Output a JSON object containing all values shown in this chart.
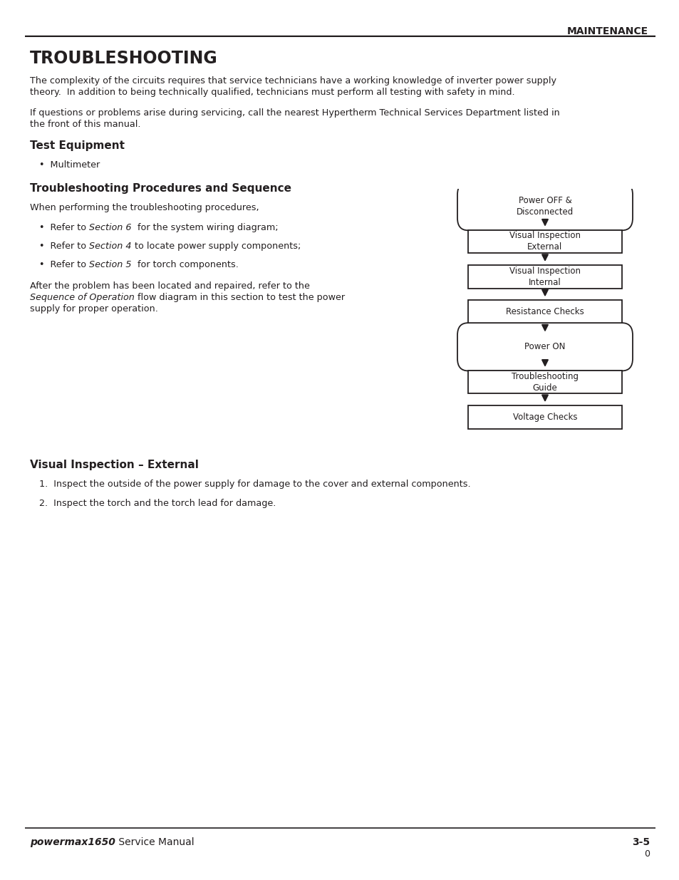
{
  "page_title": "MAINTENANCE",
  "section_title": "TROUBLESHOOTING",
  "body_text_1a": "The complexity of the circuits requires that service technicians have a working knowledge of inverter power supply",
  "body_text_1b": "theory.  In addition to being technically qualified, technicians must perform all testing with safety in mind.",
  "body_text_2a": "If questions or problems arise during servicing, call the nearest Hypertherm Technical Services Department listed in",
  "body_text_2b": "the front of this manual.",
  "subsection1_title": "Test Equipment",
  "bullet1": "•  Multimeter",
  "subsection2_title": "Troubleshooting Procedures and Sequence",
  "proc_intro": "When performing the troubleshooting procedures,",
  "b2_pre": "•  Refer to ",
  "b2_italic": "Section 6",
  "b2_post": "  for the system wiring diagram;",
  "b3_pre": "•  Refer to ",
  "b3_italic": "Section 4",
  "b3_post": " to locate power supply components;",
  "b4_pre": "•  Refer to ",
  "b4_italic": "Section 5",
  "b4_post": "  for torch components.",
  "after1": "After the problem has been located and repaired, refer to the",
  "after2_italic": "Sequence of Operation",
  "after2_post": " flow diagram in this section to test the power",
  "after3": "supply for proper operation.",
  "subsection3_title": "Visual Inspection – External",
  "numbered1": "1.  Inspect the outside of the power supply for damage to the cover and external components.",
  "numbered2": "2.  Inspect the torch and the torch lead for damage.",
  "footer_brand": "powermax1650",
  "footer_text": " Service Manual",
  "footer_page": "3-5",
  "footer_page_sub": "0",
  "flowchart_nodes": [
    {
      "label": "Power OFF &\nDisconnected",
      "shape": "rounded"
    },
    {
      "label": "Visual Inspection\nExternal",
      "shape": "rect"
    },
    {
      "label": "Visual Inspection\nInternal",
      "shape": "rect"
    },
    {
      "label": "Resistance Checks",
      "shape": "rect"
    },
    {
      "label": "Power ON",
      "shape": "rounded"
    },
    {
      "label": "Troubleshooting\nGuide",
      "shape": "rect"
    },
    {
      "label": "Voltage Checks",
      "shape": "rect"
    }
  ],
  "bg_color": "#ffffff",
  "text_color": "#231f20",
  "line_color": "#231f20"
}
